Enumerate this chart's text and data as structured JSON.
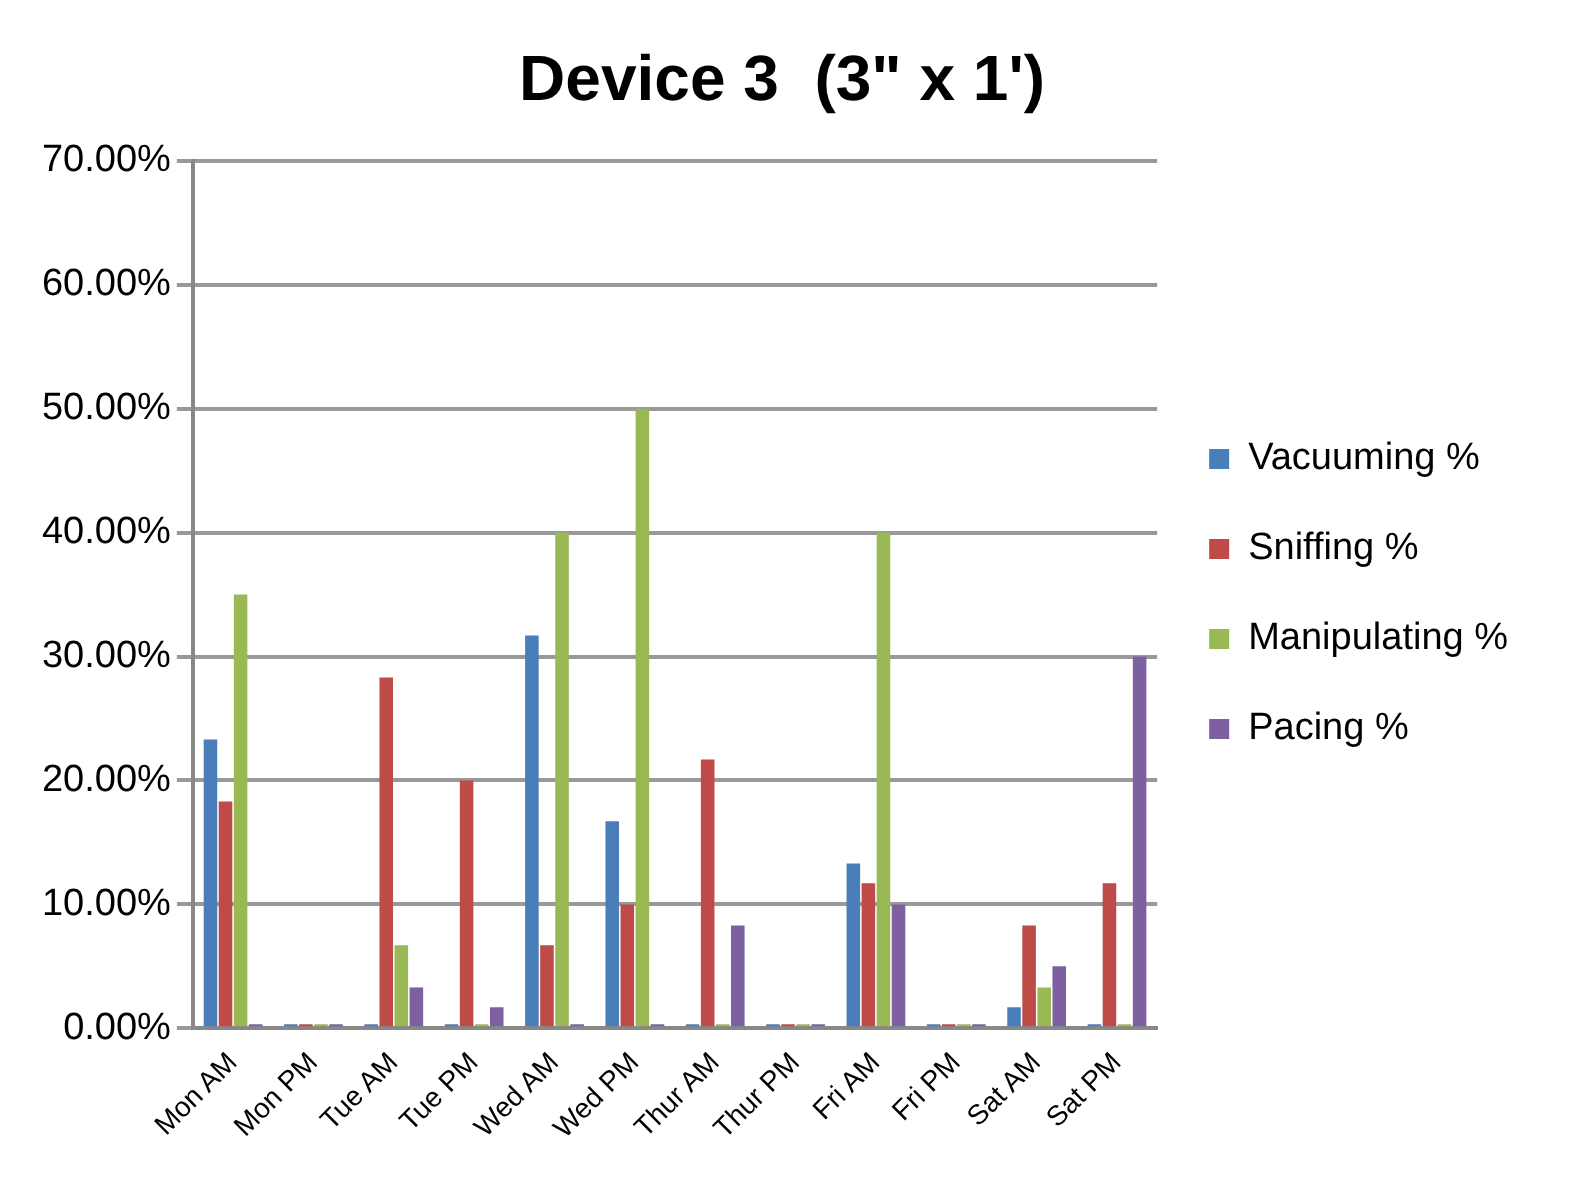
{
  "chart_data": {
    "type": "bar",
    "title": "Device 3  (3\" x 1')",
    "categories": [
      "Mon AM",
      "Mon PM",
      "Tue AM",
      "Tue PM",
      "Wed AM",
      "Wed PM",
      "Thur AM",
      "Thur PM",
      "Fri AM",
      "Fri PM",
      "Sat AM",
      "Sat PM"
    ],
    "series": [
      {
        "name": "Vacuuming %",
        "color": "#4a7ebb",
        "values": [
          23.3,
          0,
          0,
          0,
          31.7,
          16.7,
          0,
          0,
          13.3,
          0,
          1.7,
          0
        ]
      },
      {
        "name": "Sniffing %",
        "color": "#be4b48",
        "values": [
          18.3,
          0,
          28.3,
          20,
          6.7,
          10,
          21.7,
          0,
          11.7,
          0,
          8.3,
          11.7
        ]
      },
      {
        "name": "Manipulating %",
        "color": "#98b954",
        "values": [
          35,
          0,
          6.7,
          0,
          40,
          50,
          0,
          0,
          40,
          0,
          3.3,
          0
        ]
      },
      {
        "name": "Pacing %",
        "color": "#7d60a0",
        "values": [
          0,
          0,
          3.3,
          1.7,
          0,
          0,
          8.3,
          0,
          10,
          0,
          5,
          30
        ]
      }
    ],
    "ylim": [
      0,
      70
    ],
    "yticks": [
      {
        "value": 0,
        "label": "0.00%"
      },
      {
        "value": 10,
        "label": "10.00%"
      },
      {
        "value": 20,
        "label": "20.00%"
      },
      {
        "value": 30,
        "label": "30.00%"
      },
      {
        "value": 40,
        "label": "40.00%"
      },
      {
        "value": 50,
        "label": "50.00%"
      },
      {
        "value": 60,
        "label": "60.00%"
      },
      {
        "value": 70,
        "label": "70.00%"
      }
    ],
    "grid": "y",
    "legend": "right"
  }
}
